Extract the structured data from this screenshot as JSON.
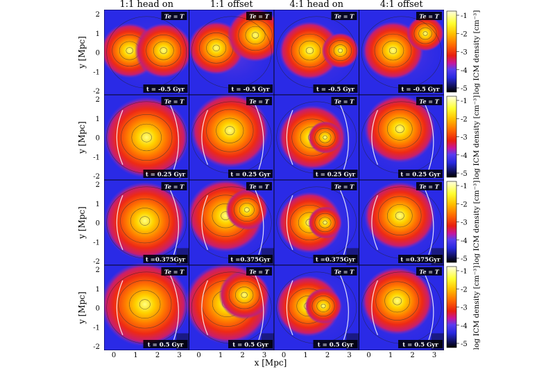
{
  "columns": [
    "1:1 head on",
    "1:1 offset",
    "4:1 head on",
    "4:1 offset"
  ],
  "time_labels": [
    "t = -0.5 Gyr",
    "t = 0.25 Gyr",
    "t =0.375Gyr",
    "t =  0.5 Gyr"
  ],
  "temp_label": "Te = T",
  "ylabel": "y [Mpc]",
  "xlabel": "x [Mpc]",
  "x_ticks": [
    "0",
    "1",
    "2",
    "3"
  ],
  "y_ticks": [
    "2",
    "1",
    "0",
    "-1",
    "-2"
  ],
  "colorbar": {
    "label": "log ICM density [cm⁻³]",
    "ticks": [
      "-1",
      "-2",
      "-3",
      "-4",
      "-5"
    ],
    "colors": [
      "#ffffe0",
      "#ffff30",
      "#ffc000",
      "#ff6a00",
      "#e81e10",
      "#c8149a",
      "#5a3cf0",
      "#2828e0",
      "#000000"
    ]
  }
}
